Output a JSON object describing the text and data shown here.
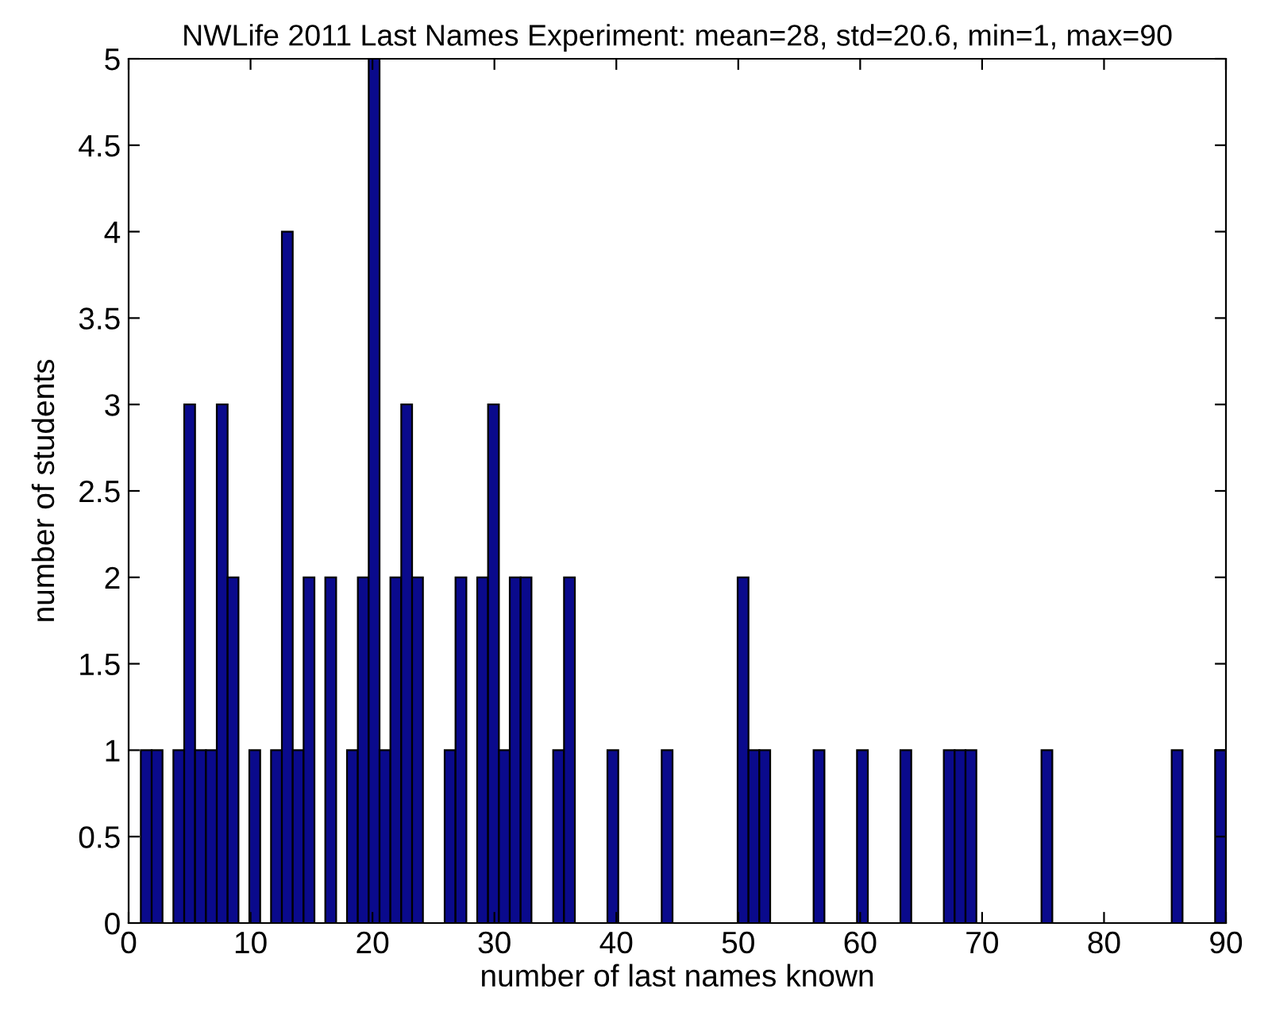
{
  "chart_data": {
    "type": "histogram",
    "title": "NWLife 2011 Last Names Experiment: mean=28, std=20.6, min=1, max=90",
    "xlabel": "number of last names known",
    "ylabel": "number of students",
    "color": "#0a0a8c",
    "bins": [
      1,
      1.89,
      2.78,
      3.67,
      4.56,
      5.45,
      6.34,
      7.23,
      8.12,
      9.01,
      9.9,
      10.79,
      11.68,
      12.57,
      13.46,
      14.35,
      15.24,
      16.13,
      17.02,
      17.91,
      18.8,
      19.69,
      20.58,
      21.47,
      22.36,
      23.25,
      24.14,
      25.03,
      25.92,
      26.81,
      27.7,
      28.59,
      29.48,
      30.37,
      31.26,
      32.15,
      33.04,
      33.93,
      34.82,
      35.71,
      36.6,
      37.49,
      38.38,
      39.27,
      40.16,
      41.05,
      41.94,
      42.83,
      43.72,
      44.61,
      45.5,
      46.39,
      47.28,
      48.17,
      49.06,
      49.95,
      50.84,
      51.73,
      52.62,
      53.51,
      54.4,
      55.29,
      56.18,
      57.07,
      57.96,
      58.85,
      59.74,
      60.63,
      61.52,
      62.41,
      63.3,
      64.19,
      65.08,
      65.97,
      66.86,
      67.75,
      68.64,
      69.53,
      70.42,
      71.31,
      72.2,
      73.09,
      73.98,
      74.87,
      75.76,
      76.65,
      77.54,
      78.43,
      79.32,
      80.21,
      81.1,
      81.99,
      82.88,
      83.77,
      84.66,
      85.55,
      86.44,
      87.33,
      88.22,
      89.11,
      90
    ],
    "values": [
      1,
      1,
      0,
      1,
      3,
      1,
      1,
      3,
      2,
      0,
      1,
      0,
      1,
      4,
      1,
      2,
      0,
      2,
      0,
      1,
      2,
      5,
      1,
      2,
      3,
      2,
      0,
      0,
      1,
      2,
      0,
      2,
      3,
      1,
      2,
      2,
      0,
      0,
      1,
      2,
      0,
      0,
      0,
      1,
      0,
      0,
      0,
      0,
      1,
      0,
      0,
      0,
      0,
      0,
      0,
      2,
      1,
      1,
      0,
      0,
      0,
      0,
      1,
      0,
      0,
      0,
      1,
      0,
      0,
      0,
      1,
      0,
      0,
      0,
      1,
      1,
      1,
      0,
      0,
      0,
      0,
      0,
      0,
      1,
      0,
      0,
      0,
      0,
      0,
      0,
      0,
      0,
      0,
      0,
      0,
      1,
      0,
      0,
      0,
      1
    ],
    "xlim": [
      0,
      90
    ],
    "xticks": [
      0,
      10,
      20,
      30,
      40,
      50,
      60,
      70,
      80,
      90
    ],
    "ylim": [
      0,
      5
    ],
    "yticks": [
      0,
      0.5,
      1,
      1.5,
      2,
      2.5,
      3,
      3.5,
      4,
      4.5,
      5
    ],
    "grid": false,
    "legend": false
  }
}
